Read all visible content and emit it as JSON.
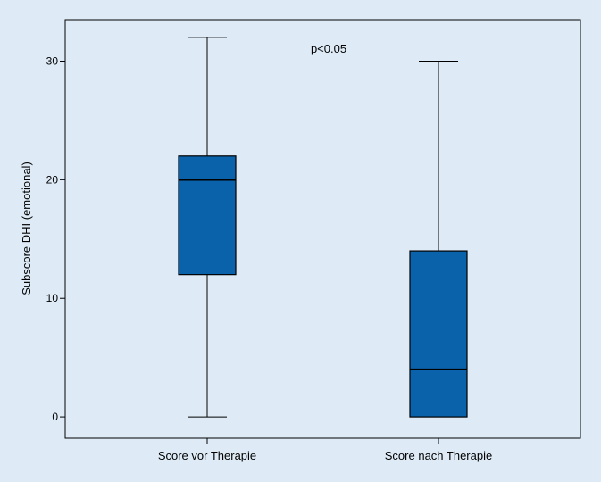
{
  "chart_data": {
    "type": "boxplot",
    "categories": [
      "Score vor Therapie",
      "Score nach Therapie"
    ],
    "boxes": [
      {
        "min": 0,
        "q1": 12,
        "median": 20,
        "q3": 22,
        "max": 32
      },
      {
        "min": 0,
        "q1": 0,
        "median": 4,
        "q3": 14,
        "max": 30
      }
    ],
    "ylabel": "Subscore DHI (emotional)",
    "xlabel": "",
    "ylim": [
      -1.8,
      33.5
    ],
    "yticks": [
      0,
      10,
      20,
      30
    ],
    "annotation": "p<0.05",
    "grid": false,
    "colors": {
      "background": "#deebf7",
      "box": "#0a62ab",
      "line": "#000000"
    }
  }
}
